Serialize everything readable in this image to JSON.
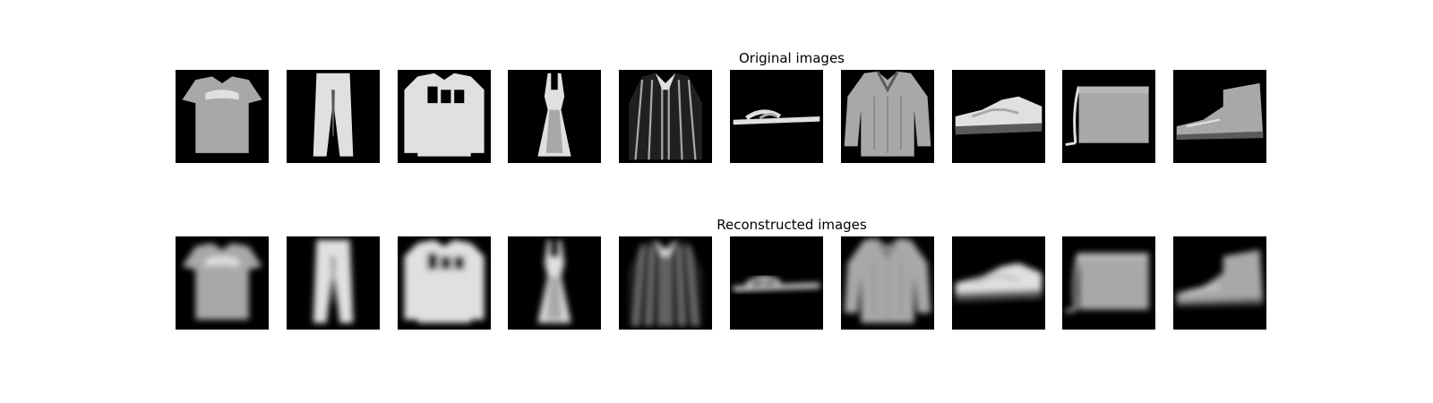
{
  "titles": {
    "original": "Original images",
    "reconstructed": "Reconstructed images"
  },
  "panels": {
    "original": [
      "tshirt",
      "trouser",
      "pullover",
      "dress",
      "coat",
      "sandal",
      "shirt",
      "sneaker",
      "bag",
      "ankle-boot"
    ],
    "reconstructed": [
      "tshirt",
      "trouser",
      "pullover",
      "dress",
      "coat",
      "sandal",
      "shirt",
      "sneaker",
      "bag",
      "ankle-boot"
    ]
  },
  "colors": {
    "background": "#ffffff",
    "tile": "#000000",
    "garment_light": "#e0e0e0",
    "garment_mid": "#a8a8a8",
    "garment_dark": "#5a5a5a"
  }
}
